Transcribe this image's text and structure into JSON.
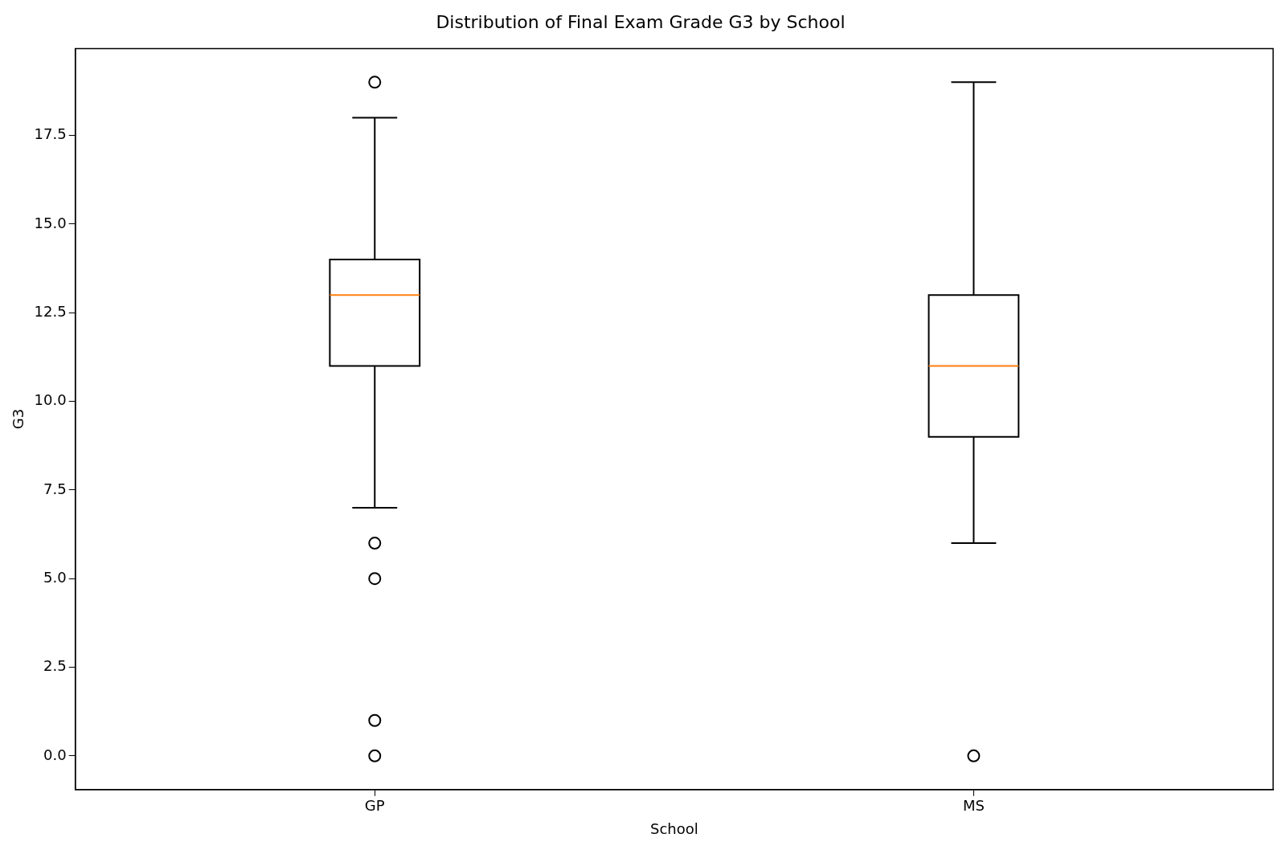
{
  "chart_data": {
    "type": "box",
    "title": "Distribution of Final Exam Grade G3 by School",
    "xlabel": "School",
    "ylabel": "G3",
    "categories": [
      "GP",
      "MS"
    ],
    "boxes": [
      {
        "low": 7,
        "q1": 11,
        "median": 13,
        "q3": 14,
        "high": 18,
        "outliers": [
          0,
          1,
          5,
          6,
          19
        ]
      },
      {
        "low": 6,
        "q1": 9,
        "median": 11,
        "q3": 13,
        "high": 19,
        "outliers": [
          0
        ]
      }
    ],
    "ylim": [
      -0.95,
      19.95
    ],
    "yticks": [
      {
        "value": 0,
        "label": "0.0"
      },
      {
        "value": 2.5,
        "label": "2.5"
      },
      {
        "value": 5,
        "label": "5.0"
      },
      {
        "value": 7.5,
        "label": "7.5"
      },
      {
        "value": 10,
        "label": "10.0"
      },
      {
        "value": 12.5,
        "label": "12.5"
      },
      {
        "value": 15,
        "label": "15.0"
      },
      {
        "value": 17.5,
        "label": "17.5"
      }
    ]
  }
}
